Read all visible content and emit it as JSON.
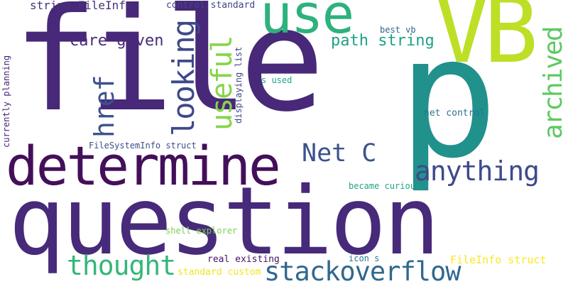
{
  "background": "#ffffff",
  "words": [
    {
      "text": "file",
      "color": "#482878"
    },
    {
      "text": "question",
      "color": "#472a7a"
    },
    {
      "text": "determine",
      "color": "#440f5a"
    },
    {
      "text": "VB",
      "color": "#bddf26"
    },
    {
      "text": "use",
      "color": "#2db27d"
    },
    {
      "text": "p",
      "color": "#21918c"
    },
    {
      "text": "stackoverflow",
      "color": "#31688e"
    },
    {
      "text": "anything",
      "color": "#3e4a89"
    },
    {
      "text": "Net C",
      "color": "#3b528b"
    },
    {
      "text": "thought",
      "color": "#35b779"
    },
    {
      "text": "looking",
      "color": "#3e4989"
    },
    {
      "text": "useful",
      "color": "#86d549"
    },
    {
      "text": "archived",
      "color": "#5ec962"
    },
    {
      "text": "href",
      "color": "#3b528b"
    },
    {
      "text": "care given",
      "color": "#472d7b"
    },
    {
      "text": "path string",
      "color": "#1fa187"
    },
    {
      "text": "string FileInfo",
      "color": "#46327e"
    },
    {
      "text": "control standard",
      "color": "#3f4788"
    },
    {
      "text": "best vb",
      "color": "#33638d"
    },
    {
      "text": "s used",
      "color": "#20a486"
    },
    {
      "text": "net control",
      "color": "#2c728e"
    },
    {
      "text": "FileSystemInfo struct",
      "color": "#3e4c8a"
    },
    {
      "text": "displaying list",
      "color": "#3e4989"
    },
    {
      "text": "currently planning",
      "color": "#482576"
    },
    {
      "text": "became curious",
      "color": "#20a386"
    },
    {
      "text": "shell explorer",
      "color": "#7ad151"
    },
    {
      "text": "real existing",
      "color": "#471365"
    },
    {
      "text": "icon s",
      "color": "#2a788e"
    },
    {
      "text": "FileInfo struct",
      "color": "#fde725"
    },
    {
      "text": "standard custom",
      "color": "#f1e51d"
    }
  ]
}
